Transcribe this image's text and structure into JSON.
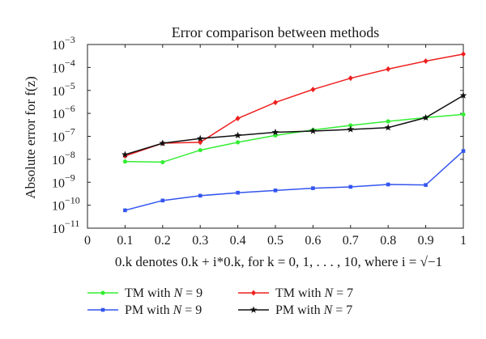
{
  "chart_data": {
    "type": "line",
    "title": "Error comparison between methods",
    "ylabel": "Absolute error for f(z)",
    "xlabel": "0.k denotes 0.k + i*0.k, for k = 0, 1, . . . , 10, where i = √−1",
    "x": [
      0.1,
      0.2,
      0.3,
      0.4,
      0.5,
      0.6,
      0.7,
      0.8,
      0.9,
      1.0
    ],
    "xlim": [
      0,
      1
    ],
    "ylim": [
      1e-11,
      0.001
    ],
    "yscale": "log",
    "grid": false,
    "legend_position": "bottom",
    "x_tick_labels": [
      "0",
      "0.1",
      "0.2",
      "0.3",
      "0.4",
      "0.5",
      "0.6",
      "0.7",
      "0.8",
      "0.9",
      "1"
    ],
    "y_tick_labels": [
      "10^-11",
      "10^-10",
      "10^-9",
      "10^-8",
      "10^-7",
      "10^-6",
      "10^-5",
      "10^-4",
      "10^-3"
    ],
    "series": [
      {
        "name": "TM with N = 9",
        "color": "#33ee33",
        "marker": "circle",
        "values": [
          8e-09,
          7.5e-09,
          2.5e-08,
          5.5e-08,
          1.1e-07,
          1.9e-07,
          3e-07,
          4.5e-07,
          6.5e-07,
          9e-07
        ]
      },
      {
        "name": "TM with N = 7",
        "color": "#ee2020",
        "marker": "diamond",
        "values": [
          1.4e-08,
          5e-08,
          5.5e-08,
          6e-07,
          3e-06,
          1.1e-05,
          3.4e-05,
          8.5e-05,
          0.00019,
          0.00038
        ]
      },
      {
        "name": "PM with N = 9",
        "color": "#3355ee",
        "marker": "square",
        "values": [
          6e-11,
          1.6e-10,
          2.6e-10,
          3.5e-10,
          4.4e-10,
          5.5e-10,
          6.3e-10,
          8e-10,
          7.6e-10,
          2.3e-08
        ]
      },
      {
        "name": "PM with N = 7",
        "color": "#111111",
        "marker": "star",
        "values": [
          1.6e-08,
          5e-08,
          8e-08,
          1.1e-07,
          1.5e-07,
          1.7e-07,
          2e-07,
          2.4e-07,
          6.5e-07,
          6e-06
        ]
      }
    ]
  }
}
